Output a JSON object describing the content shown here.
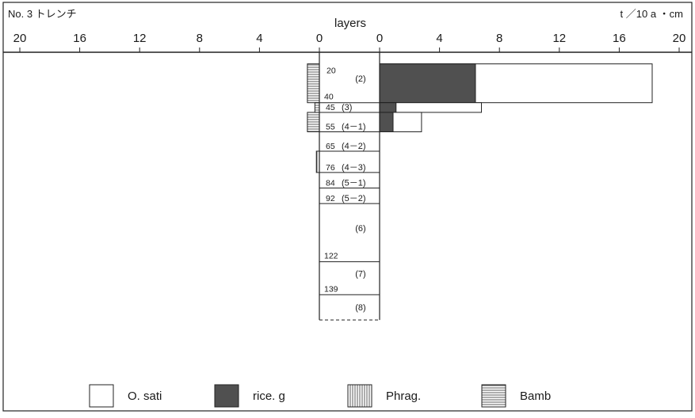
{
  "chart_data": {
    "type": "bar",
    "trench_title": "No. 3 トレンチ",
    "center_label": "layers",
    "unit_label": "t ／10 a ・cm",
    "left_axis": {
      "ticks": [
        "20",
        "16",
        "12",
        "8",
        "4",
        "0"
      ],
      "range": [
        0,
        20
      ]
    },
    "right_axis": {
      "ticks": [
        "0",
        "4",
        "8",
        "12",
        "16",
        "20"
      ],
      "range": [
        0,
        20
      ]
    },
    "depth_range": [
      14,
      155
    ],
    "layers": [
      {
        "name": "(2)",
        "top": 20,
        "bottom": 40,
        "top_label": "20",
        "bottom_label": "40"
      },
      {
        "name": "(3)",
        "top": 40,
        "bottom": 45,
        "top_label": "",
        "bottom_label": "45"
      },
      {
        "name": "(4－1)",
        "top": 45,
        "bottom": 55,
        "top_label": "",
        "bottom_label": "55"
      },
      {
        "name": "(4－2)",
        "top": 55,
        "bottom": 65,
        "top_label": "",
        "bottom_label": "65"
      },
      {
        "name": "(4－3)",
        "top": 65,
        "bottom": 76,
        "top_label": "",
        "bottom_label": "76"
      },
      {
        "name": "(5－1)",
        "top": 76,
        "bottom": 84,
        "top_label": "",
        "bottom_label": "84"
      },
      {
        "name": "(5－2)",
        "top": 84,
        "bottom": 92,
        "top_label": "",
        "bottom_label": "92"
      },
      {
        "name": "(6)",
        "top": 92,
        "bottom": 122,
        "top_label": "",
        "bottom_label": "122"
      },
      {
        "name": "(7)",
        "top": 122,
        "bottom": 139,
        "top_label": "",
        "bottom_label": "139"
      },
      {
        "name": "(8)",
        "top": 139,
        "bottom": 152,
        "top_label": "",
        "bottom_label": ""
      }
    ],
    "right_series": [
      {
        "name": "O. sati",
        "pattern": "white",
        "values": [
          18.2,
          6.8,
          2.8,
          0,
          0,
          0,
          0,
          0,
          0,
          0
        ]
      },
      {
        "name": "rice. g",
        "pattern": "dark",
        "values": [
          6.4,
          1.1,
          0.9,
          0,
          0,
          0,
          0,
          0,
          0,
          0
        ]
      }
    ],
    "left_series": [
      {
        "name": "Bamb",
        "pattern": "horizontal",
        "values": [
          0.8,
          0.3,
          0.8,
          0,
          0,
          0,
          0,
          0,
          0,
          0
        ]
      },
      {
        "name": "Phrag.",
        "pattern": "vertical",
        "values": [
          0,
          0,
          0,
          0,
          0.2,
          0,
          0,
          0,
          0,
          0
        ]
      }
    ],
    "legend": [
      {
        "label": "O. sati",
        "pattern": "white"
      },
      {
        "label": "rice. g",
        "pattern": "dark"
      },
      {
        "label": "Phrag.",
        "pattern": "vertical"
      },
      {
        "label": "Bamb",
        "pattern": "horizontal"
      }
    ],
    "colors": {
      "dark_fill": "#505050",
      "line": "#222222",
      "background": "#ffffff"
    }
  }
}
